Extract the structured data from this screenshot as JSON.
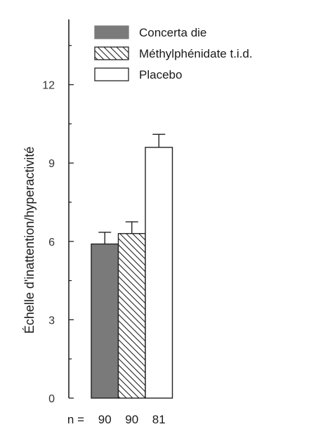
{
  "chart_data": {
    "type": "bar",
    "categories": [
      "Concerta die",
      "Méthylphénidate t.i.d.",
      "Placebo"
    ],
    "values": [
      5.9,
      6.3,
      9.6
    ],
    "errors": [
      0.45,
      0.45,
      0.5
    ],
    "ylabel": "Échelle d'inattention/hyperactivité",
    "yticks": [
      0,
      3,
      6,
      9,
      12
    ],
    "ylim": [
      0,
      14.5
    ],
    "legend": {
      "placement": "top",
      "entries": [
        {
          "label": "Concerta die",
          "fill": "#7a7a7a",
          "pattern": "solid"
        },
        {
          "label": "Méthylphénidate t.i.d.",
          "fill": "#ffffff",
          "pattern": "diagonal-hatch"
        },
        {
          "label": "Placebo",
          "fill": "#ffffff",
          "pattern": "none"
        }
      ]
    },
    "n_prefix": "n =",
    "n_values": [
      "90",
      "90",
      "81"
    ]
  }
}
